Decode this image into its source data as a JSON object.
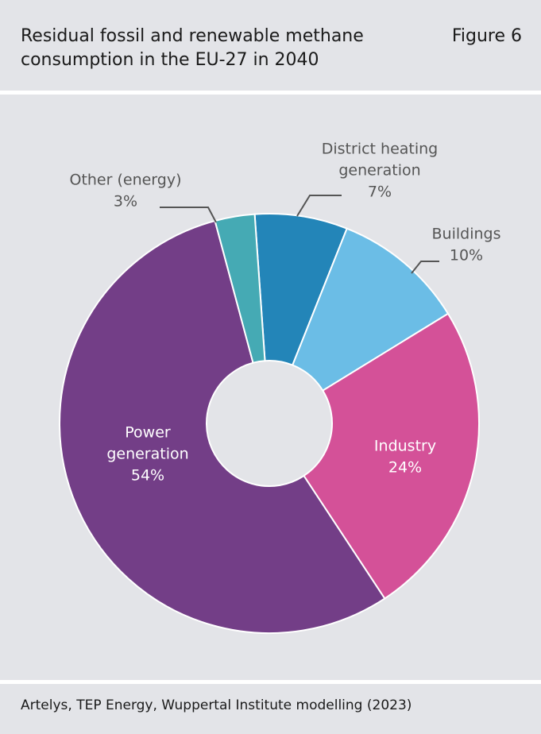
{
  "header": {
    "title_line1": "Residual fossil and renewable methane",
    "title_line2": "consumption in the EU-27 in 2040",
    "figure_label": "Figure 6"
  },
  "chart_data": {
    "type": "pie",
    "donut": true,
    "slices": [
      {
        "label": [
          "District heating",
          "generation"
        ],
        "value_label": "7%",
        "value": 7,
        "color": "#2385b8"
      },
      {
        "label": [
          "Buildings"
        ],
        "value_label": "10%",
        "value": 10,
        "color": "#6bbde6"
      },
      {
        "label": [
          "Industry"
        ],
        "value_label": "24%",
        "value": 24,
        "color": "#d45198"
      },
      {
        "label": [
          "Power",
          "generation"
        ],
        "value_label": "54%",
        "value": 54,
        "color": "#733e87"
      },
      {
        "label": [
          "Other (energy)"
        ],
        "value_label": "3%",
        "value": 3,
        "color": "#45aab4"
      }
    ]
  },
  "footer": {
    "source": "Artelys, TEP Energy, Wuppertal Institute modelling (2023)"
  }
}
